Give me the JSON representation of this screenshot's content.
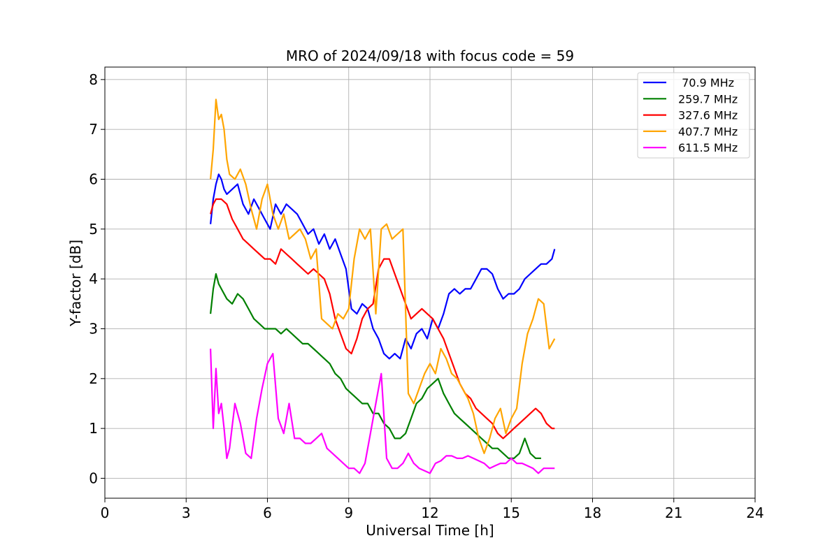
{
  "chart_data": {
    "type": "line",
    "title": "MRO of 2024/09/18 with focus code = 59",
    "xlabel": "Universal Time [h]",
    "ylabel": "Y-factor [dB]",
    "xlim": [
      0,
      24
    ],
    "ylim": [
      -0.4,
      8.25
    ],
    "xticks": [
      0,
      3,
      6,
      9,
      12,
      15,
      18,
      21,
      24
    ],
    "yticks": [
      0,
      1,
      2,
      3,
      4,
      5,
      6,
      7,
      8
    ],
    "grid": true,
    "legend_position": "top-right",
    "series": [
      {
        "name": " 70.9 MHz",
        "color": "#0000ff",
        "x": [
          3.9,
          4.0,
          4.1,
          4.2,
          4.3,
          4.4,
          4.5,
          4.7,
          4.9,
          5.1,
          5.3,
          5.5,
          5.7,
          5.9,
          6.1,
          6.3,
          6.5,
          6.7,
          6.9,
          7.1,
          7.3,
          7.5,
          7.7,
          7.9,
          8.1,
          8.3,
          8.5,
          8.7,
          8.9,
          9.1,
          9.3,
          9.5,
          9.7,
          9.9,
          10.1,
          10.3,
          10.5,
          10.7,
          10.9,
          11.1,
          11.3,
          11.5,
          11.7,
          11.9,
          12.1,
          12.3,
          12.5,
          12.7,
          12.9,
          13.1,
          13.3,
          13.5,
          13.7,
          13.9,
          14.1,
          14.3,
          14.5,
          14.7,
          14.9,
          15.1,
          15.3,
          15.5,
          15.7,
          15.9,
          16.1,
          16.3,
          16.5,
          16.6
        ],
        "y": [
          5.1,
          5.6,
          5.9,
          6.1,
          6.0,
          5.8,
          5.7,
          5.8,
          5.9,
          5.5,
          5.3,
          5.6,
          5.4,
          5.2,
          5.0,
          5.5,
          5.3,
          5.5,
          5.4,
          5.3,
          5.1,
          4.9,
          5.0,
          4.7,
          4.9,
          4.6,
          4.8,
          4.5,
          4.2,
          3.4,
          3.3,
          3.5,
          3.4,
          3.0,
          2.8,
          2.5,
          2.4,
          2.5,
          2.4,
          2.8,
          2.6,
          2.9,
          3.0,
          2.8,
          3.2,
          3.0,
          3.3,
          3.7,
          3.8,
          3.7,
          3.8,
          3.8,
          4.0,
          4.2,
          4.2,
          4.1,
          3.8,
          3.6,
          3.7,
          3.7,
          3.8,
          4.0,
          4.1,
          4.2,
          4.3,
          4.3,
          4.4,
          4.6
        ]
      },
      {
        "name": "259.7 MHz",
        "color": "#008000",
        "x": [
          3.9,
          4.0,
          4.1,
          4.2,
          4.3,
          4.5,
          4.7,
          4.9,
          5.1,
          5.3,
          5.5,
          5.7,
          5.9,
          6.1,
          6.3,
          6.5,
          6.7,
          6.9,
          7.1,
          7.3,
          7.5,
          7.7,
          7.9,
          8.1,
          8.3,
          8.5,
          8.7,
          8.9,
          9.1,
          9.3,
          9.5,
          9.7,
          9.9,
          10.1,
          10.3,
          10.5,
          10.7,
          10.9,
          11.1,
          11.3,
          11.5,
          11.7,
          11.9,
          12.1,
          12.3,
          12.5,
          12.7,
          12.9,
          13.1,
          13.3,
          13.5,
          13.7,
          13.9,
          14.1,
          14.3,
          14.5,
          14.7,
          14.9,
          15.1,
          15.3,
          15.5,
          15.7,
          15.9,
          16.1
        ],
        "y": [
          3.3,
          3.8,
          4.1,
          3.9,
          3.8,
          3.6,
          3.5,
          3.7,
          3.6,
          3.4,
          3.2,
          3.1,
          3.0,
          3.0,
          3.0,
          2.9,
          3.0,
          2.9,
          2.8,
          2.7,
          2.7,
          2.6,
          2.5,
          2.4,
          2.3,
          2.1,
          2.0,
          1.8,
          1.7,
          1.6,
          1.5,
          1.5,
          1.3,
          1.3,
          1.1,
          1.0,
          0.8,
          0.8,
          0.9,
          1.2,
          1.5,
          1.6,
          1.8,
          1.9,
          2.0,
          1.7,
          1.5,
          1.3,
          1.2,
          1.1,
          1.0,
          0.9,
          0.8,
          0.7,
          0.6,
          0.6,
          0.5,
          0.4,
          0.4,
          0.5,
          0.8,
          0.5,
          0.4,
          0.4
        ]
      },
      {
        "name": "327.6 MHz",
        "color": "#ff0000",
        "x": [
          3.9,
          4.0,
          4.1,
          4.2,
          4.3,
          4.5,
          4.7,
          4.9,
          5.1,
          5.3,
          5.5,
          5.7,
          5.9,
          6.1,
          6.3,
          6.5,
          6.7,
          6.9,
          7.1,
          7.3,
          7.5,
          7.7,
          7.9,
          8.1,
          8.3,
          8.5,
          8.7,
          8.9,
          9.1,
          9.3,
          9.5,
          9.7,
          9.9,
          10.1,
          10.3,
          10.5,
          10.7,
          10.9,
          11.1,
          11.3,
          11.5,
          11.7,
          11.9,
          12.1,
          12.3,
          12.5,
          12.7,
          12.9,
          13.1,
          13.3,
          13.5,
          13.7,
          13.9,
          14.1,
          14.3,
          14.5,
          14.7,
          14.9,
          15.1,
          15.3,
          15.5,
          15.7,
          15.9,
          16.1,
          16.3,
          16.5,
          16.6
        ],
        "y": [
          5.3,
          5.5,
          5.6,
          5.6,
          5.6,
          5.5,
          5.2,
          5.0,
          4.8,
          4.7,
          4.6,
          4.5,
          4.4,
          4.4,
          4.3,
          4.6,
          4.5,
          4.4,
          4.3,
          4.2,
          4.1,
          4.2,
          4.1,
          4.0,
          3.7,
          3.2,
          2.9,
          2.6,
          2.5,
          2.8,
          3.2,
          3.4,
          3.5,
          4.2,
          4.4,
          4.4,
          4.1,
          3.8,
          3.5,
          3.2,
          3.3,
          3.4,
          3.3,
          3.2,
          3.0,
          2.8,
          2.5,
          2.2,
          1.9,
          1.7,
          1.6,
          1.4,
          1.3,
          1.2,
          1.1,
          0.9,
          0.8,
          0.9,
          1.0,
          1.1,
          1.2,
          1.3,
          1.4,
          1.3,
          1.1,
          1.0,
          1.0
        ]
      },
      {
        "name": "407.7 MHz",
        "color": "#ffa500",
        "x": [
          3.9,
          4.0,
          4.1,
          4.2,
          4.3,
          4.4,
          4.5,
          4.6,
          4.8,
          5.0,
          5.2,
          5.4,
          5.6,
          5.8,
          6.0,
          6.2,
          6.4,
          6.6,
          6.8,
          7.0,
          7.2,
          7.4,
          7.6,
          7.8,
          8.0,
          8.2,
          8.4,
          8.6,
          8.8,
          9.0,
          9.2,
          9.4,
          9.6,
          9.8,
          10.0,
          10.2,
          10.4,
          10.6,
          10.8,
          11.0,
          11.2,
          11.4,
          11.6,
          11.8,
          12.0,
          12.2,
          12.4,
          12.6,
          12.8,
          13.0,
          13.2,
          13.4,
          13.6,
          13.8,
          14.0,
          14.2,
          14.4,
          14.6,
          14.8,
          15.0,
          15.2,
          15.4,
          15.6,
          15.8,
          16.0,
          16.2,
          16.4,
          16.6
        ],
        "y": [
          6.0,
          6.6,
          7.6,
          7.2,
          7.3,
          7.0,
          6.4,
          6.1,
          6.0,
          6.2,
          5.9,
          5.4,
          5.0,
          5.6,
          5.9,
          5.3,
          5.0,
          5.3,
          4.8,
          4.9,
          5.0,
          4.8,
          4.4,
          4.6,
          3.2,
          3.1,
          3.0,
          3.3,
          3.2,
          3.4,
          4.4,
          5.0,
          4.8,
          5.0,
          3.3,
          5.0,
          5.1,
          4.8,
          4.9,
          5.0,
          1.7,
          1.5,
          1.8,
          2.1,
          2.3,
          2.1,
          2.6,
          2.4,
          2.1,
          2.0,
          1.8,
          1.6,
          1.3,
          0.8,
          0.5,
          0.8,
          1.2,
          1.4,
          0.9,
          1.2,
          1.4,
          2.3,
          2.9,
          3.2,
          3.6,
          3.5,
          2.6,
          2.8
        ]
      },
      {
        "name": "611.5 MHz",
        "color": "#ff00ff",
        "x": [
          3.9,
          4.0,
          4.1,
          4.2,
          4.3,
          4.4,
          4.5,
          4.6,
          4.8,
          5.0,
          5.2,
          5.4,
          5.6,
          5.8,
          6.0,
          6.2,
          6.4,
          6.6,
          6.8,
          7.0,
          7.2,
          7.4,
          7.6,
          7.8,
          8.0,
          8.2,
          8.4,
          8.6,
          8.8,
          9.0,
          9.2,
          9.4,
          9.6,
          9.8,
          10.0,
          10.2,
          10.4,
          10.6,
          10.8,
          11.0,
          11.2,
          11.4,
          11.6,
          11.8,
          12.0,
          12.2,
          12.4,
          12.6,
          12.8,
          13.0,
          13.2,
          13.4,
          13.6,
          13.8,
          14.0,
          14.2,
          14.4,
          14.6,
          14.8,
          15.0,
          15.2,
          15.4,
          15.6,
          15.8,
          16.0,
          16.2,
          16.4,
          16.6
        ],
        "y": [
          2.6,
          1.0,
          2.2,
          1.3,
          1.5,
          1.0,
          0.4,
          0.6,
          1.5,
          1.1,
          0.5,
          0.4,
          1.2,
          1.8,
          2.3,
          2.5,
          1.2,
          0.9,
          1.5,
          0.8,
          0.8,
          0.7,
          0.7,
          0.8,
          0.9,
          0.6,
          0.5,
          0.4,
          0.3,
          0.2,
          0.2,
          0.1,
          0.3,
          0.9,
          1.5,
          2.1,
          0.4,
          0.2,
          0.2,
          0.3,
          0.5,
          0.3,
          0.2,
          0.15,
          0.1,
          0.3,
          0.35,
          0.45,
          0.45,
          0.4,
          0.4,
          0.45,
          0.4,
          0.35,
          0.3,
          0.2,
          0.25,
          0.3,
          0.3,
          0.4,
          0.3,
          0.3,
          0.25,
          0.2,
          0.1,
          0.2,
          0.2,
          0.2
        ]
      }
    ]
  }
}
